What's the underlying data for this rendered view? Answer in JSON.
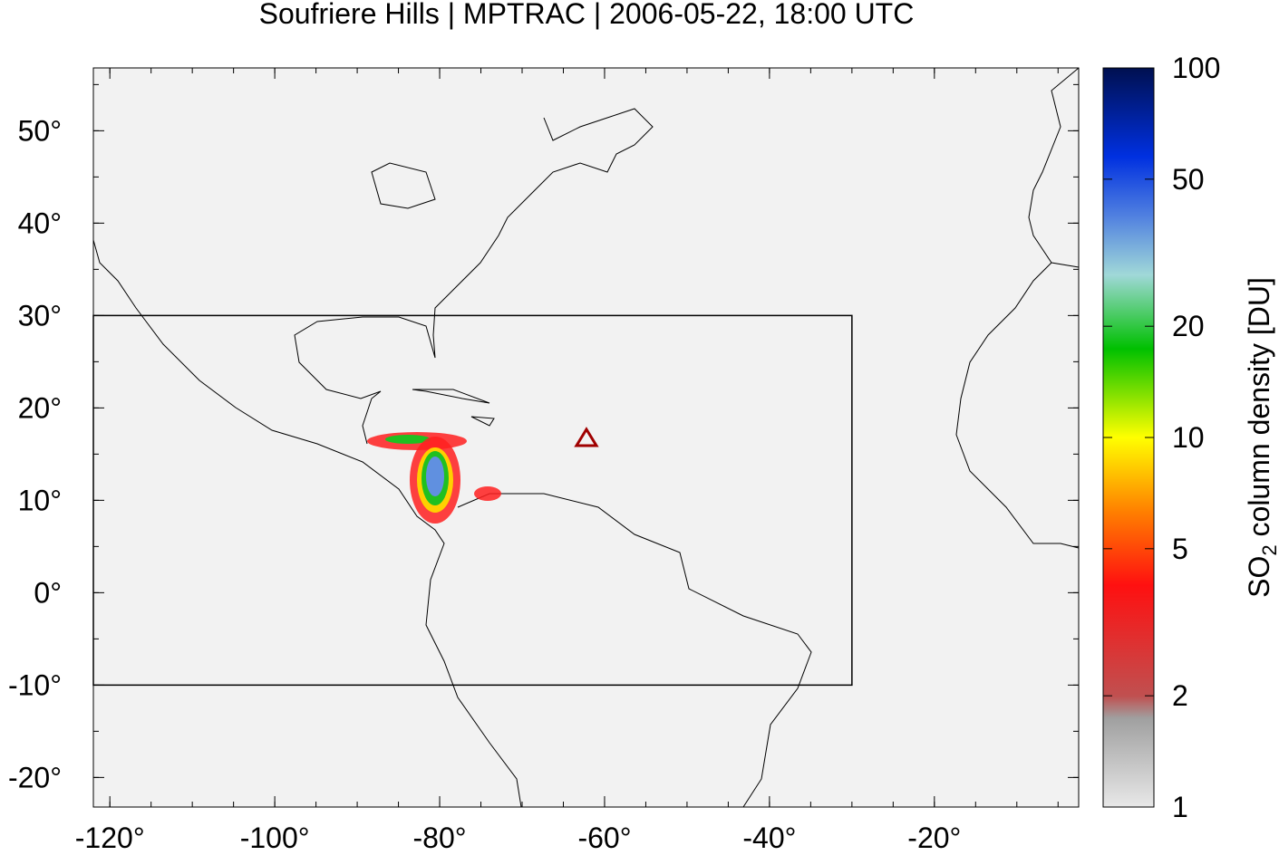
{
  "chart_data": {
    "type": "map",
    "title": "Soufriere Hills | MPTRAC | 2006-05-22, 18:00 UTC",
    "xlim": [
      -122,
      -2.5
    ],
    "ylim": [
      -23.2,
      56.8
    ],
    "xticks": [
      {
        "value": -120,
        "label": "-120°"
      },
      {
        "value": -100,
        "label": "-100°"
      },
      {
        "value": -80,
        "label": "-80°"
      },
      {
        "value": -60,
        "label": "-60°"
      },
      {
        "value": -40,
        "label": "-40°"
      },
      {
        "value": -20,
        "label": "-20°"
      }
    ],
    "yticks": [
      {
        "value": -20,
        "label": "-20°"
      },
      {
        "value": -10,
        "label": "-10°"
      },
      {
        "value": 0,
        "label": "0°"
      },
      {
        "value": 10,
        "label": "10°"
      },
      {
        "value": 20,
        "label": "20°"
      },
      {
        "value": 30,
        "label": "30°"
      },
      {
        "value": 40,
        "label": "40°"
      },
      {
        "value": 50,
        "label": "50°"
      }
    ],
    "region": {
      "lon": [
        -122,
        -30
      ],
      "lat": [
        -10,
        30
      ]
    },
    "volcano": {
      "lon": -62.2,
      "lat": 16.7,
      "color": "#a00000"
    },
    "colorbar": {
      "label_prefix": "SO",
      "label_sub": "2",
      "label_suffix": " column density [DU]",
      "log": true,
      "lim": [
        1,
        100
      ],
      "ticks": [
        1,
        2,
        5,
        10,
        20,
        50,
        100
      ]
    }
  }
}
